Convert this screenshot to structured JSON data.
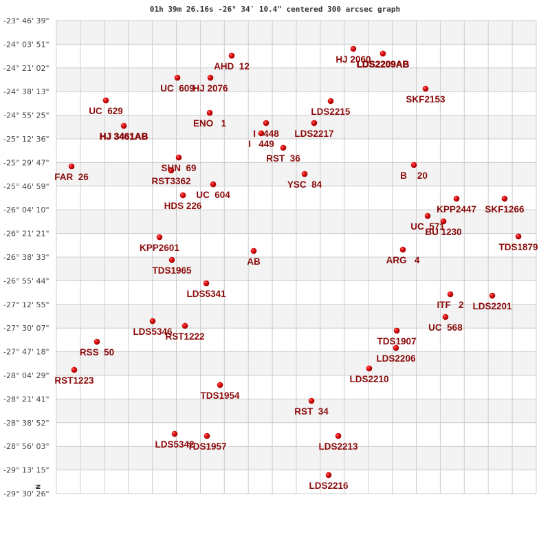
{
  "chart_data": {
    "type": "scatter",
    "title": "01h 39m 26.16s -26° 34′ 10.4\" centered 300 arcsec graph",
    "north_marker": "N",
    "y_unit": "declination (degrees)",
    "ylim": [
      -29.5072,
      -23.7775
    ],
    "xlim": [
      -2.865,
      2.865
    ],
    "grid": true,
    "y_tick_labels": [
      "-23° 46' 39\"",
      "-24° 03' 51\"",
      "-24° 21' 02\"",
      "-24° 38' 13\"",
      "-24° 55' 25\"",
      "-25° 12' 36\"",
      "-25° 29' 47\"",
      "-25° 46' 59\"",
      "-26° 04' 10\"",
      "-26° 21' 21\"",
      "-26° 38' 33\"",
      "-26° 55' 44\"",
      "-27° 12' 55\"",
      "-27° 30' 07\"",
      "-27° 47' 18\"",
      "-28° 04' 29\"",
      "-28° 21' 41\"",
      "-28° 38' 52\"",
      "-28° 56' 03\"",
      "-29° 13' 15\"",
      "-29° 30' 26\""
    ],
    "colors": {
      "point": "#dd0000",
      "label": "#8b0a0a",
      "grid": "#cccccc",
      "band": "#f3f3f3"
    },
    "points": [
      {
        "name": "AHD  12",
        "x": -0.772,
        "y": -24.202
      },
      {
        "name": "UC  609",
        "x": -1.42,
        "y": -24.469
      },
      {
        "name": "HJ 2076",
        "x": -1.026,
        "y": -24.469
      },
      {
        "name": "UC  629",
        "x": -2.274,
        "y": -24.744
      },
      {
        "name": "ENO   1",
        "x": -1.034,
        "y": -24.894
      },
      {
        "name": "HJ 3461AB",
        "x": -2.06,
        "y": -25.052,
        "bold": true
      },
      {
        "name": "I   448",
        "x": -0.361,
        "y": -25.018
      },
      {
        "name": "I   449",
        "x": -0.419,
        "y": -25.143
      },
      {
        "name": "RST  36",
        "x": -0.156,
        "y": -25.318
      },
      {
        "name": "LDS2215",
        "x": 0.41,
        "y": -24.752
      },
      {
        "name": "LDS2217",
        "x": 0.213,
        "y": -25.018
      },
      {
        "name": "HJ 2060",
        "x": 0.681,
        "y": -24.119
      },
      {
        "name": "LDS2209AB",
        "x": 1.034,
        "y": -24.177,
        "bold": true
      },
      {
        "name": "SKF2153",
        "x": 1.543,
        "y": -24.602
      },
      {
        "name": "SHN  69",
        "x": -1.404,
        "y": -25.435
      },
      {
        "name": "RST3362",
        "x": -1.494,
        "y": -25.593
      },
      {
        "name": "FAR  26",
        "x": -2.684,
        "y": -25.543
      },
      {
        "name": "UC  604",
        "x": -0.993,
        "y": -25.76
      },
      {
        "name": "HDS 226",
        "x": -1.354,
        "y": -25.893
      },
      {
        "name": "YSC  84",
        "x": 0.099,
        "y": -25.635
      },
      {
        "name": "B    20",
        "x": 1.404,
        "y": -25.526
      },
      {
        "name": "KPP2447",
        "x": 1.913,
        "y": -25.934
      },
      {
        "name": "SKF1266",
        "x": 2.487,
        "y": -25.934
      },
      {
        "name": "UC  571",
        "x": 1.568,
        "y": -26.143
      },
      {
        "name": "BU 1230",
        "x": 1.757,
        "y": -26.209
      },
      {
        "name": "TDS1879",
        "x": 2.652,
        "y": -26.392
      },
      {
        "name": "ARG   4",
        "x": 1.272,
        "y": -26.551
      },
      {
        "name": "KPP2601",
        "x": -1.634,
        "y": -26.401
      },
      {
        "name": "AB",
        "x": -0.509,
        "y": -26.567
      },
      {
        "name": "TDS1965",
        "x": -1.486,
        "y": -26.676
      },
      {
        "name": "LDS5341",
        "x": -1.075,
        "y": -26.959
      },
      {
        "name": "ITF   2",
        "x": 1.839,
        "y": -27.092
      },
      {
        "name": "LDS2201",
        "x": 2.34,
        "y": -27.109
      },
      {
        "name": "UC  568",
        "x": 1.781,
        "y": -27.367
      },
      {
        "name": "LDS5346",
        "x": -1.716,
        "y": -27.417
      },
      {
        "name": "RST1222",
        "x": -1.33,
        "y": -27.475
      },
      {
        "name": "TDS1907",
        "x": 1.199,
        "y": -27.533
      },
      {
        "name": "RSS  50",
        "x": -2.381,
        "y": -27.667
      },
      {
        "name": "LDS2206",
        "x": 1.19,
        "y": -27.742
      },
      {
        "name": "LDS2210",
        "x": 0.87,
        "y": -27.991
      },
      {
        "name": "RST1223",
        "x": -2.652,
        "y": -28.008
      },
      {
        "name": "TDS1954",
        "x": -0.911,
        "y": -28.191
      },
      {
        "name": "RST  34",
        "x": 0.181,
        "y": -28.383
      },
      {
        "name": "LDS5342",
        "x": -1.453,
        "y": -28.783
      },
      {
        "name": "TDS1957",
        "x": -1.067,
        "y": -28.808
      },
      {
        "name": "LDS2213",
        "x": 0.501,
        "y": -28.808
      },
      {
        "name": "LDS2216",
        "x": 0.386,
        "y": -29.282
      }
    ]
  }
}
